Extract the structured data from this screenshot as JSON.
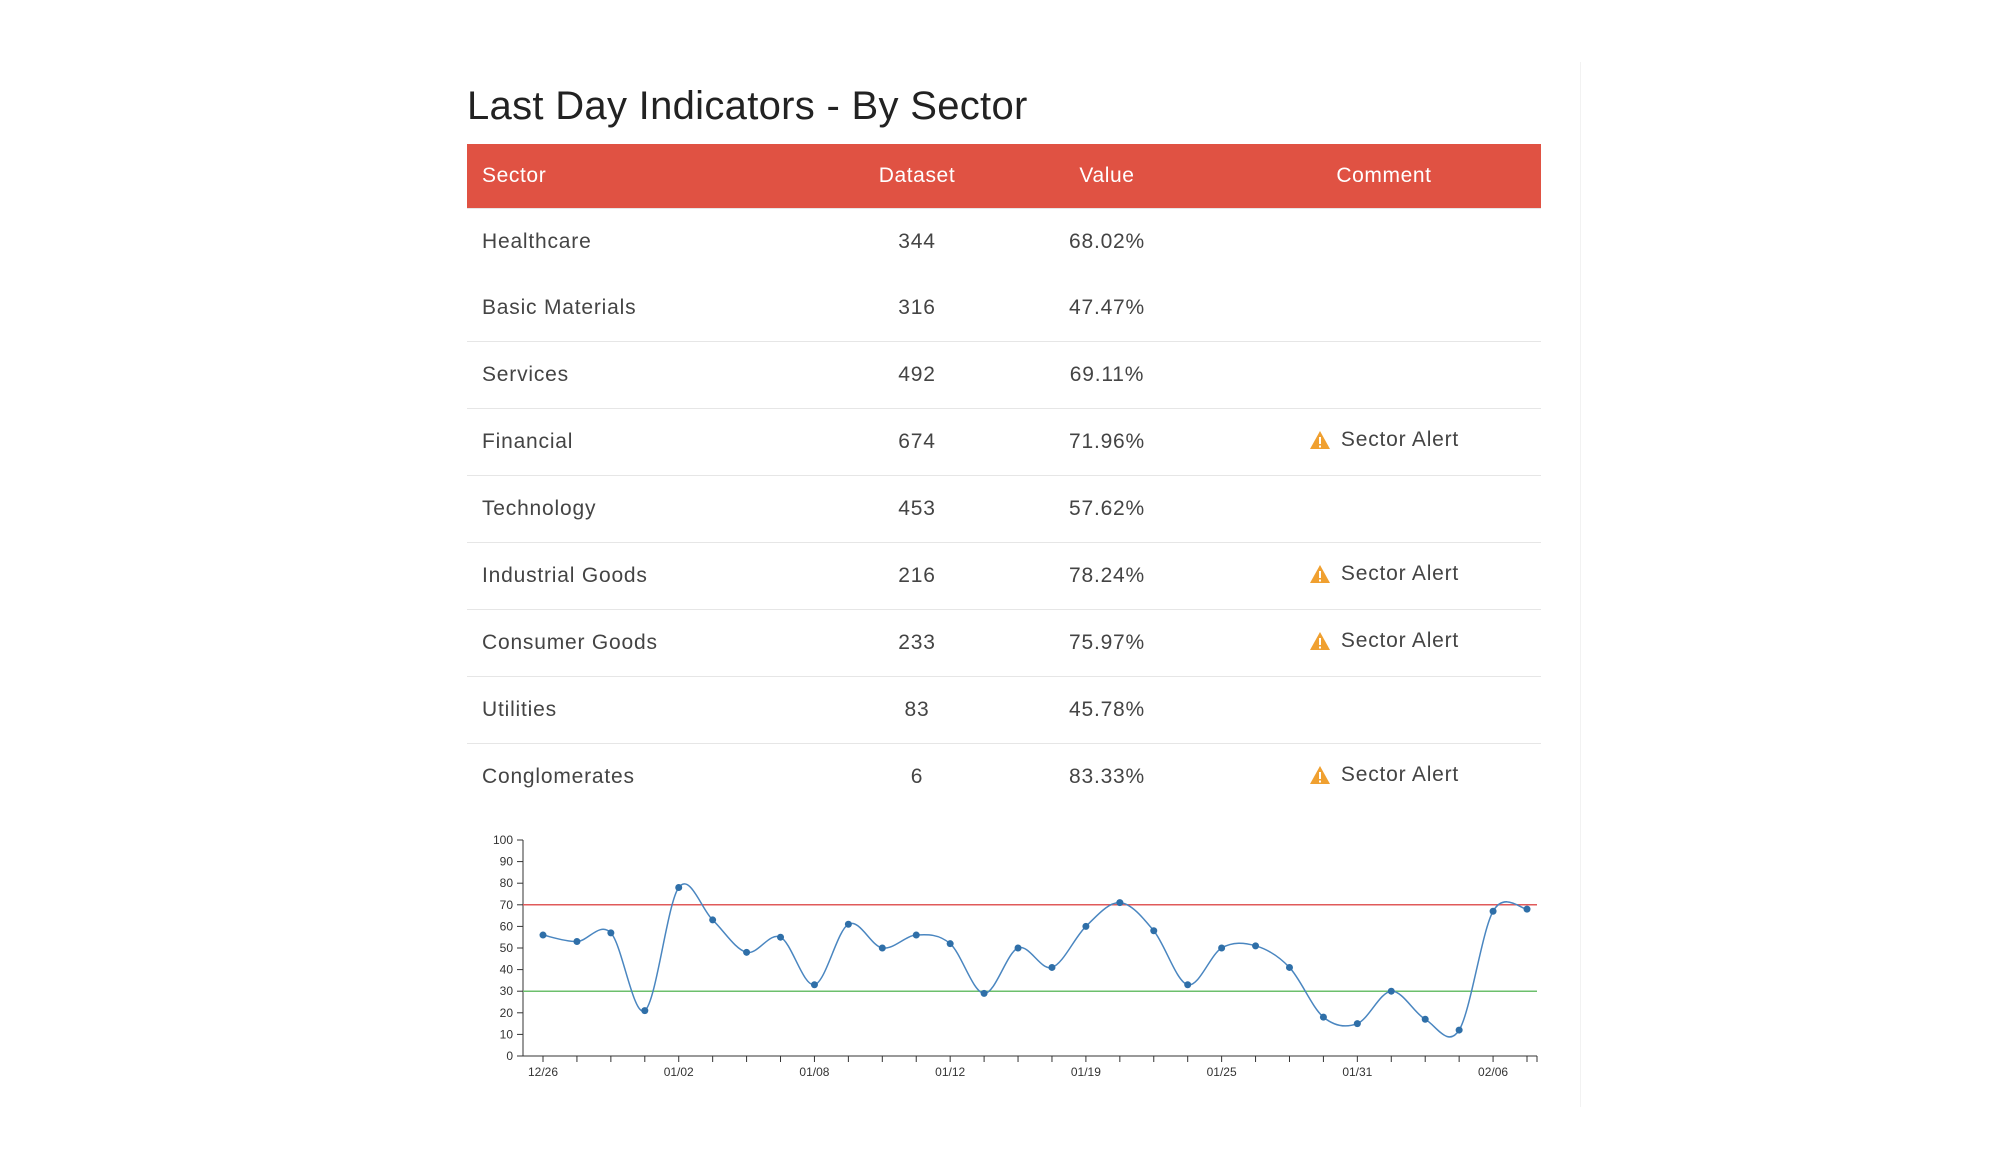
{
  "page": {
    "title": "Last Day Indicators - By Sector"
  },
  "table": {
    "headers": {
      "sector": "Sector",
      "dataset": "Dataset",
      "value": "Value",
      "comment": "Comment"
    },
    "rows": [
      {
        "sector": "Healthcare",
        "dataset": "344",
        "value": "68.02%",
        "comment": ""
      },
      {
        "sector": "Basic Materials",
        "dataset": "316",
        "value": "47.47%",
        "comment": ""
      },
      {
        "sector": "Services",
        "dataset": "492",
        "value": "69.11%",
        "comment": ""
      },
      {
        "sector": "Financial",
        "dataset": "674",
        "value": "71.96%",
        "comment": "Sector Alert"
      },
      {
        "sector": "Technology",
        "dataset": "453",
        "value": "57.62%",
        "comment": ""
      },
      {
        "sector": "Industrial Goods",
        "dataset": "216",
        "value": "78.24%",
        "comment": "Sector Alert"
      },
      {
        "sector": "Consumer Goods",
        "dataset": "233",
        "value": "75.97%",
        "comment": "Sector Alert"
      },
      {
        "sector": "Utilities",
        "dataset": "83",
        "value": "45.78%",
        "comment": ""
      },
      {
        "sector": "Conglomerates",
        "dataset": "6",
        "value": "83.33%",
        "comment": "Sector Alert"
      }
    ],
    "alert_icon": "warning-triangle-icon",
    "colors": {
      "header_bg": "#e05243",
      "alert_icon": "#f0a030"
    }
  },
  "chart_data": {
    "type": "line",
    "x_tick_labels": [
      "12/26",
      "01/02",
      "01/08",
      "01/12",
      "01/19",
      "01/25",
      "01/31",
      "02/06"
    ],
    "x_tick_label_indices": [
      0,
      4,
      8,
      12,
      16,
      20,
      24,
      28
    ],
    "num_points": 30,
    "values": [
      56,
      53,
      57,
      21,
      78,
      63,
      48,
      55,
      33,
      61,
      50,
      56,
      52,
      29,
      50,
      41,
      60,
      71,
      58,
      33,
      50,
      51,
      41,
      18,
      15,
      30,
      17,
      12,
      67,
      68
    ],
    "ylim": [
      0,
      100
    ],
    "y_ticks": [
      0,
      10,
      20,
      30,
      40,
      50,
      60,
      70,
      80,
      90,
      100
    ],
    "thresholds": [
      {
        "value": 70,
        "color": "#e05a5a"
      },
      {
        "value": 30,
        "color": "#6cbf6c"
      }
    ],
    "line_color": "#4a86c0",
    "title": "",
    "xlabel": "",
    "ylabel": ""
  }
}
